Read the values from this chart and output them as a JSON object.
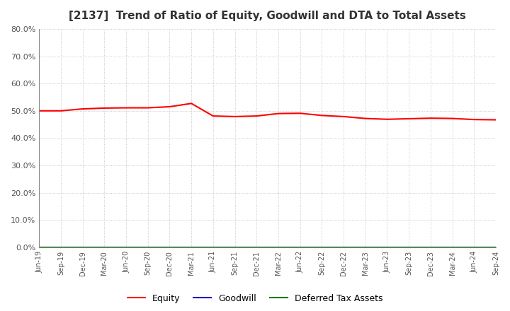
{
  "title": "[2137]  Trend of Ratio of Equity, Goodwill and DTA to Total Assets",
  "x_labels": [
    "Jun-19",
    "Sep-19",
    "Dec-19",
    "Mar-20",
    "Jun-20",
    "Sep-20",
    "Dec-20",
    "Mar-21",
    "Jun-21",
    "Sep-21",
    "Dec-21",
    "Mar-22",
    "Jun-22",
    "Sep-22",
    "Dec-22",
    "Mar-23",
    "Jun-23",
    "Sep-23",
    "Dec-23",
    "Mar-24",
    "Jun-24",
    "Sep-24"
  ],
  "equity": [
    0.5,
    0.5,
    0.507,
    0.51,
    0.511,
    0.511,
    0.515,
    0.527,
    0.481,
    0.479,
    0.481,
    0.49,
    0.491,
    0.483,
    0.479,
    0.472,
    0.469,
    0.471,
    0.473,
    0.472,
    0.468,
    0.467
  ],
  "goodwill": [
    0.0,
    0.0,
    0.0,
    0.0,
    0.0,
    0.0,
    0.0,
    0.0,
    0.0,
    0.0,
    0.0,
    0.0,
    0.0,
    0.0,
    0.0,
    0.0,
    0.0,
    0.0,
    0.0,
    0.0,
    0.0,
    0.0
  ],
  "dta": [
    0.0,
    0.0,
    0.0,
    0.0,
    0.0,
    0.0,
    0.0,
    0.0,
    0.0,
    0.0,
    0.0,
    0.0,
    0.0,
    0.0,
    0.0,
    0.0,
    0.0,
    0.0,
    0.0,
    0.0,
    0.0,
    0.0
  ],
  "equity_color": "#FF0000",
  "goodwill_color": "#0000CC",
  "dta_color": "#008000",
  "ylim": [
    0.0,
    0.8
  ],
  "yticks": [
    0.0,
    0.1,
    0.2,
    0.3,
    0.4,
    0.5,
    0.6,
    0.7,
    0.8
  ],
  "bg_color": "#FFFFFF",
  "plot_bg_color": "#FFFFFF",
  "grid_color": "#BBBBBB",
  "title_fontsize": 11,
  "tick_color": "#555555",
  "legend_labels": [
    "Equity",
    "Goodwill",
    "Deferred Tax Assets"
  ]
}
